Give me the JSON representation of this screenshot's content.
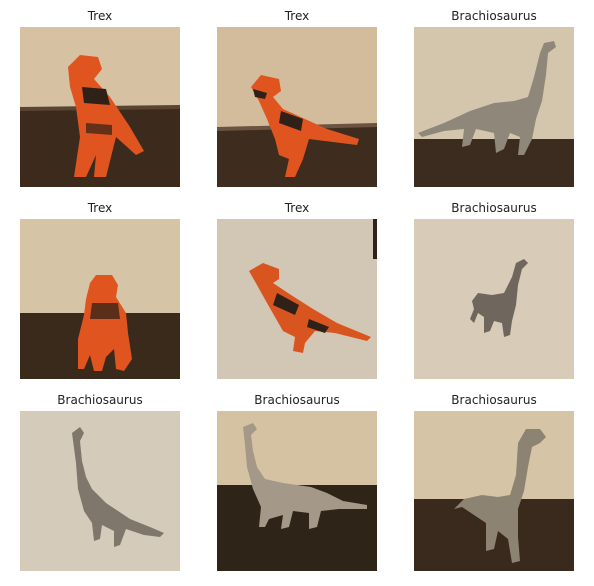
{
  "grid": {
    "items": [
      {
        "label": "Trex"
      },
      {
        "label": "Trex"
      },
      {
        "label": "Brachiosaurus"
      },
      {
        "label": "Trex"
      },
      {
        "label": "Trex"
      },
      {
        "label": "Brachiosaurus"
      },
      {
        "label": "Brachiosaurus"
      },
      {
        "label": "Brachiosaurus"
      },
      {
        "label": "Brachiosaurus"
      }
    ]
  },
  "colors": {
    "wall": "#d8c4a4",
    "table": "#3a2a1c",
    "trex": "#e0551f",
    "trex_stripe": "#2f2118",
    "brachio": "#8a8170"
  }
}
